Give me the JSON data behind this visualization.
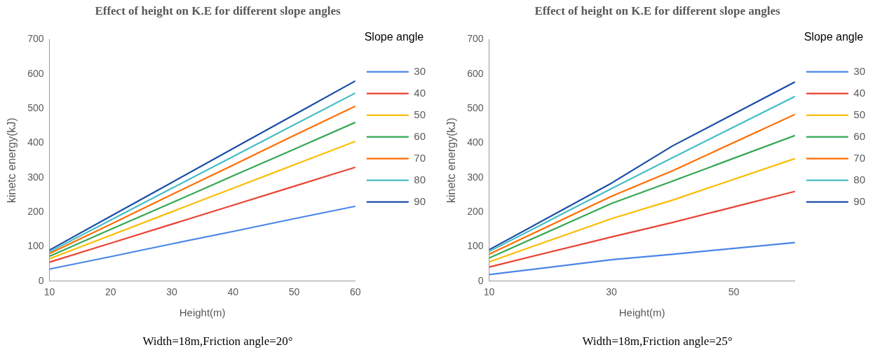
{
  "chart_data": [
    {
      "type": "line",
      "title": "Effect of height on K.E for different slope angles",
      "xlabel": "Height(m)",
      "ylabel": "kinetc energy(kJ)",
      "legend_title": "Slope angle",
      "legend": "right",
      "grid": false,
      "marker": "none",
      "line_style": "solid",
      "x": [
        10,
        20,
        30,
        40,
        50,
        60
      ],
      "xlim": [
        10,
        60
      ],
      "xticks": [
        10,
        20,
        30,
        40,
        50,
        60
      ],
      "ylim": [
        0,
        700
      ],
      "yticks": [
        0,
        100,
        200,
        300,
        400,
        500,
        600,
        700
      ],
      "series": [
        {
          "name": "30",
          "color": "#4a86e8",
          "values": [
            35,
            71,
            108,
            144,
            181,
            217
          ]
        },
        {
          "name": "40",
          "color": "#ea4335",
          "values": [
            55,
            110,
            165,
            220,
            275,
            330
          ]
        },
        {
          "name": "50",
          "color": "#fbbc04",
          "values": [
            65,
            133,
            201,
            269,
            337,
            405
          ]
        },
        {
          "name": "60",
          "color": "#34a853",
          "values": [
            72,
            150,
            227,
            305,
            382,
            460
          ]
        },
        {
          "name": "70",
          "color": "#ff6d01",
          "values": [
            80,
            165,
            251,
            336,
            422,
            507
          ]
        },
        {
          "name": "80",
          "color": "#46bdc6",
          "values": [
            85,
            177,
            269,
            361,
            453,
            545
          ]
        },
        {
          "name": "90",
          "color": "#1a4ea8",
          "values": [
            90,
            188,
            286,
            384,
            482,
            580
          ]
        }
      ],
      "annotations": [
        "Width=18m,Friction angle=20°"
      ]
    },
    {
      "type": "line",
      "title": "Effect of height on K.E for different slope angles",
      "xlabel": "Height(m)",
      "ylabel": "kinetc energy(kJ)",
      "legend_title": "Slope angle",
      "legend": "right",
      "grid": false,
      "marker": "none",
      "line_style": "solid",
      "x": [
        10,
        30,
        40,
        60
      ],
      "xlim": [
        10,
        60
      ],
      "xticks": [
        10,
        30,
        50
      ],
      "ylim": [
        0,
        700
      ],
      "yticks": [
        0,
        100,
        200,
        300,
        400,
        500,
        600,
        700
      ],
      "series": [
        {
          "name": "30",
          "color": "#4a86e8",
          "values": [
            19,
            62,
            78,
            112
          ]
        },
        {
          "name": "40",
          "color": "#ea4335",
          "values": [
            41,
            128,
            170,
            260
          ]
        },
        {
          "name": "50",
          "color": "#fbbc04",
          "values": [
            56,
            181,
            235,
            355
          ]
        },
        {
          "name": "60",
          "color": "#34a853",
          "values": [
            67,
            225,
            290,
            422
          ]
        },
        {
          "name": "70",
          "color": "#ff6d01",
          "values": [
            78,
            246,
            320,
            483
          ]
        },
        {
          "name": "80",
          "color": "#46bdc6",
          "values": [
            86,
            268,
            358,
            535
          ]
        },
        {
          "name": "90",
          "color": "#1a4ea8",
          "values": [
            91,
            284,
            392,
            577
          ]
        }
      ],
      "annotations": [
        "Width=18m,Friction angle=25°"
      ]
    }
  ]
}
